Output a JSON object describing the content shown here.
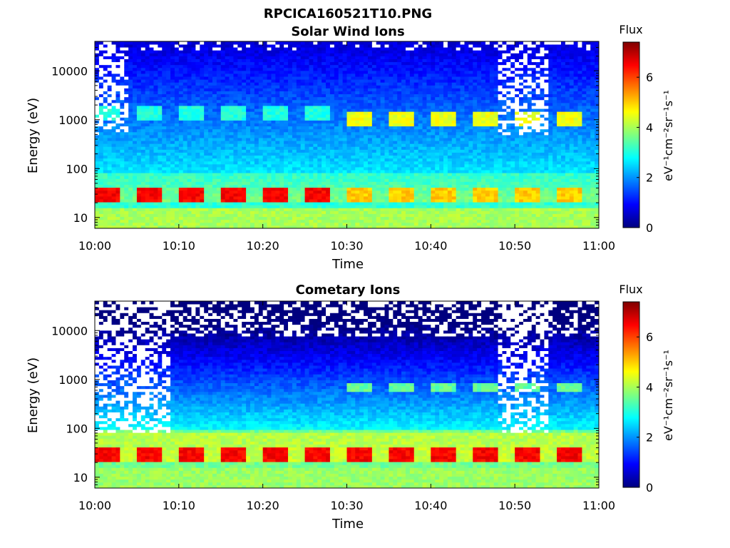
{
  "figure": {
    "title": "RPCICA160521T10.PNG"
  },
  "colors": {
    "colormap": [
      "#00007f",
      "#0000ff",
      "#007fff",
      "#00ffff",
      "#7fff7f",
      "#ffff00",
      "#ff7f00",
      "#ff0000",
      "#7f0000"
    ],
    "background": "#ffffff"
  },
  "chart_data": [
    {
      "type": "heatmap",
      "title": "Solar Wind Ions",
      "xlabel": "Time",
      "ylabel": "Energy (eV)",
      "yscale": "log",
      "xlim": [
        "10:00",
        "11:00"
      ],
      "ylim": [
        6,
        40000
      ],
      "x_ticks": [
        "10:00",
        "10:10",
        "10:20",
        "10:30",
        "10:40",
        "10:50",
        "11:00"
      ],
      "y_ticks": [
        "10",
        "100",
        "1000",
        "10000"
      ],
      "colorbar": {
        "title": "Flux",
        "label": "eV⁻¹cm⁻²sr⁻¹s⁻¹",
        "range": [
          0,
          7.4
        ],
        "ticks": [
          "0",
          "2",
          "4",
          "6"
        ]
      },
      "features": {
        "low_energy_band_eV": [
          20,
          40
        ],
        "low_energy_band_flux_before_1028": 6.5,
        "low_energy_band_flux_after_1028": 5.0,
        "mid_energy_bands_eV": [
          700,
          1500
        ],
        "mid_energy_flux_after_1028": 4.5,
        "high_energy_gaps": [
          "10:00-10:04",
          "10:48-10:54"
        ]
      }
    },
    {
      "type": "heatmap",
      "title": "Cometary Ions",
      "xlabel": "Time",
      "ylabel": "Energy (eV)",
      "yscale": "log",
      "xlim": [
        "10:00",
        "11:00"
      ],
      "ylim": [
        6,
        40000
      ],
      "x_ticks": [
        "10:00",
        "10:10",
        "10:20",
        "10:30",
        "10:40",
        "10:50",
        "11:00"
      ],
      "y_ticks": [
        "10",
        "100",
        "1000",
        "10000"
      ],
      "colorbar": {
        "title": "Flux",
        "label": "eV⁻¹cm⁻²sr⁻¹s⁻¹",
        "range": [
          0,
          7.4
        ],
        "ticks": [
          "0",
          "2",
          "4",
          "6"
        ]
      },
      "features": {
        "low_energy_band_eV": [
          20,
          40
        ],
        "low_energy_band_flux": 6.5,
        "mid_energy_bands_eV": [
          600,
          900
        ],
        "mid_energy_flux_after_1028": 3.5,
        "high_energy_gaps": [
          "10:00-10:09",
          "10:48-10:54"
        ]
      }
    }
  ]
}
